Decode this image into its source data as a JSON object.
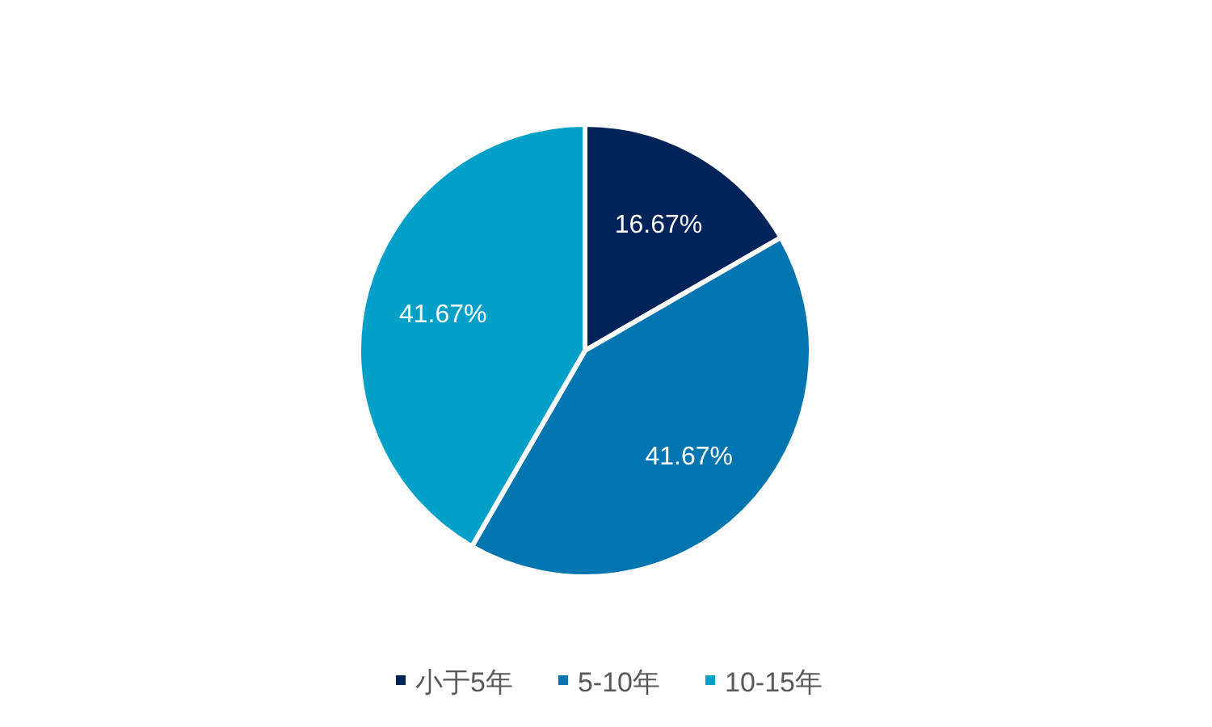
{
  "chart_data": {
    "type": "pie",
    "categories": [
      "小于5年",
      "5-10年",
      "10-15年"
    ],
    "values": [
      16.67,
      41.67,
      41.67
    ],
    "value_labels": [
      "16.67%",
      "41.67%",
      "41.67%"
    ],
    "colors": [
      "#002359",
      "#0075b0",
      "#00a0c9"
    ],
    "legend": "bottom"
  }
}
